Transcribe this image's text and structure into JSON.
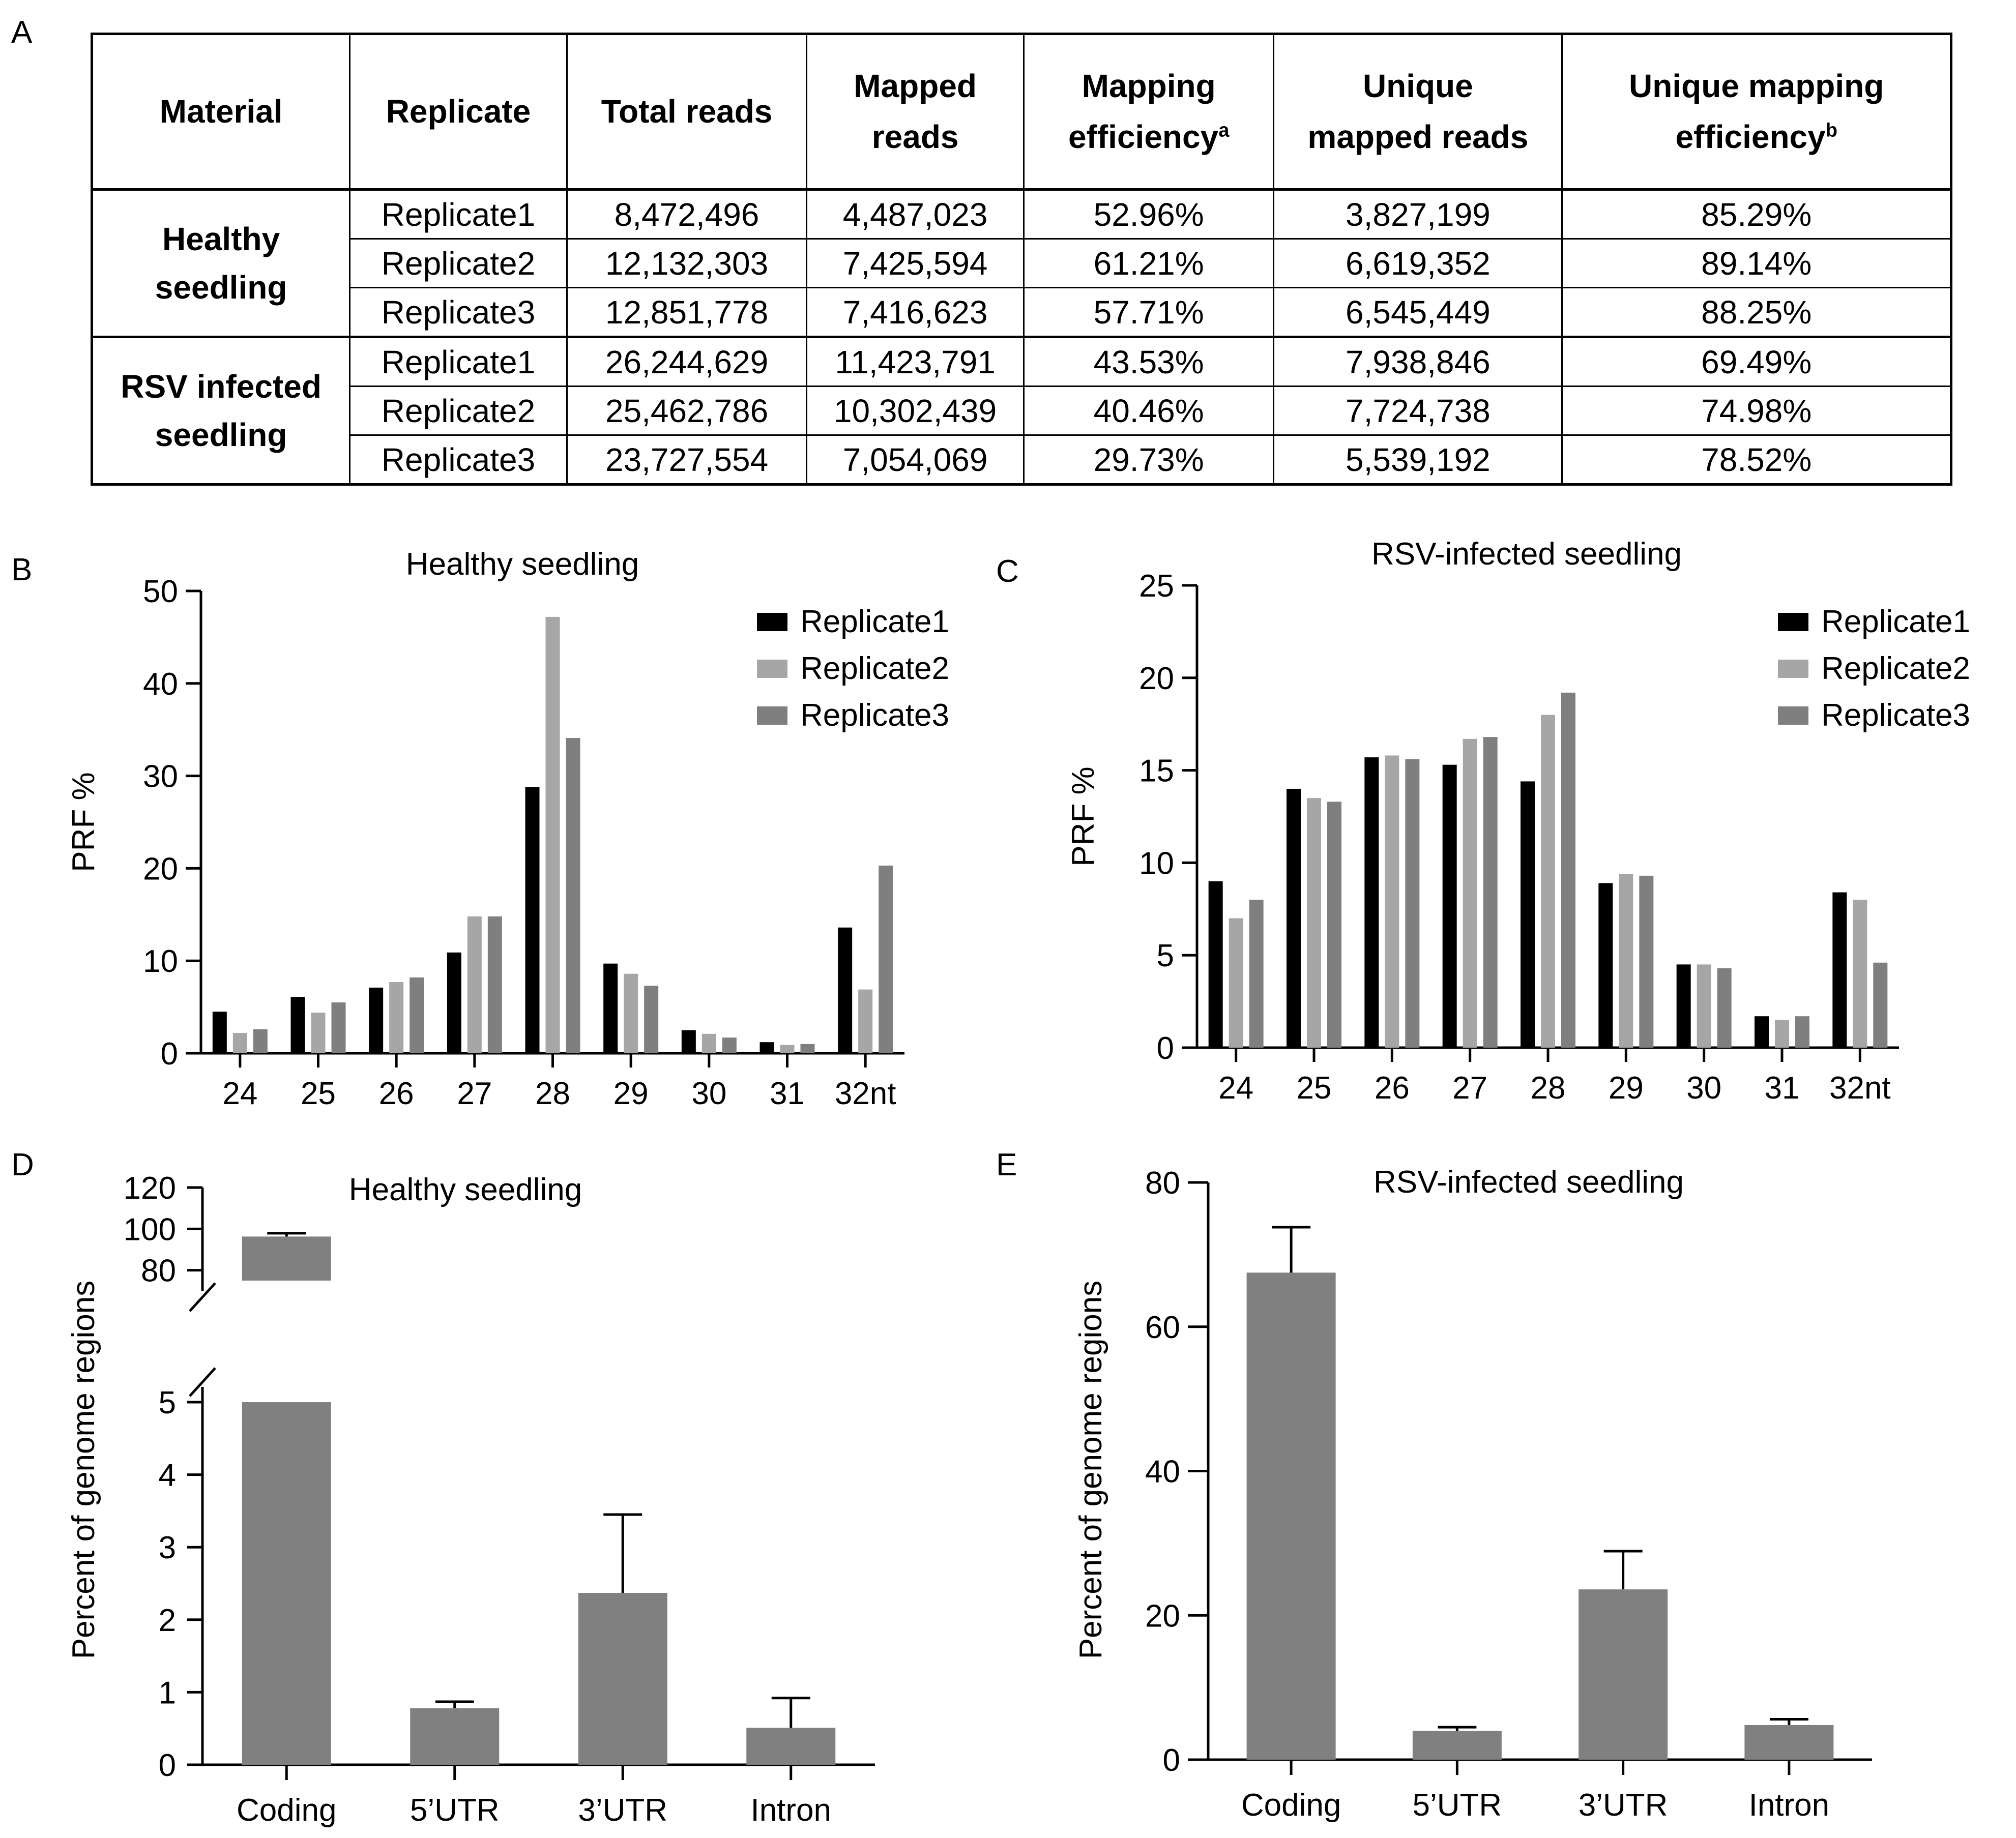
{
  "panel_labels": {
    "a": "A",
    "b": "B",
    "c": "C",
    "d": "D",
    "e": "E"
  },
  "table": {
    "headers": [
      {
        "text": "Material"
      },
      {
        "text": "Replicate"
      },
      {
        "text": "Total reads"
      },
      {
        "line1": "Mapped",
        "line2": "reads"
      },
      {
        "line1": "Mapping",
        "line2": "efficiency",
        "sup": "a"
      },
      {
        "line1": "Unique",
        "line2": "mapped reads"
      },
      {
        "line1": "Unique mapping",
        "line2": "efficiency",
        "sup": "b"
      }
    ],
    "groups": [
      {
        "line1": "Healthy",
        "line2": "seedling",
        "rows": [
          [
            "Replicate1",
            "8,472,496",
            "4,487,023",
            "52.96%",
            "3,827,199",
            "85.29%"
          ],
          [
            "Replicate2",
            "12,132,303",
            "7,425,594",
            "61.21%",
            "6,619,352",
            "89.14%"
          ],
          [
            "Replicate3",
            "12,851,778",
            "7,416,623",
            "57.71%",
            "6,545,449",
            "88.25%"
          ]
        ]
      },
      {
        "line1": "RSV infected",
        "line2": "seedling",
        "rows": [
          [
            "Replicate1",
            "26,244,629",
            "11,423,791",
            "43.53%",
            "7,938,846",
            "69.49%"
          ],
          [
            "Replicate2",
            "25,462,786",
            "10,302,439",
            "40.46%",
            "7,724,738",
            "74.98%"
          ],
          [
            "Replicate3",
            "23,727,554",
            "7,054,069",
            "29.73%",
            "5,539,192",
            "78.52%"
          ]
        ]
      }
    ]
  },
  "colors": {
    "rep1": "#000000",
    "rep2": "#a6a6a6",
    "rep3": "#7f7f7f",
    "bar": "#808080"
  },
  "chart_data": [
    {
      "id": "B",
      "type": "bar",
      "title": "Healthy seedling",
      "xlabel": "",
      "ylabel": "PRF %",
      "categories": [
        "24",
        "25",
        "26",
        "27",
        "28",
        "29",
        "30",
        "31",
        "32nt"
      ],
      "series": [
        {
          "name": "Replicate1",
          "values": [
            4.5,
            6.1,
            7.1,
            10.9,
            28.8,
            9.7,
            2.5,
            1.2,
            13.6
          ]
        },
        {
          "name": "Replicate2",
          "values": [
            2.2,
            4.4,
            7.7,
            14.8,
            47.2,
            8.6,
            2.1,
            0.9,
            6.9
          ]
        },
        {
          "name": "Replicate3",
          "values": [
            2.6,
            5.5,
            8.2,
            14.8,
            34.1,
            7.3,
            1.7,
            1.0,
            20.3
          ]
        }
      ],
      "ylim": [
        0,
        50
      ],
      "yticks": [
        0,
        10,
        20,
        30,
        40,
        50
      ],
      "legend": "top-right"
    },
    {
      "id": "C",
      "type": "bar",
      "title": "RSV-infected seedling",
      "xlabel": "",
      "ylabel": "PRF %",
      "categories": [
        "24",
        "25",
        "26",
        "27",
        "28",
        "29",
        "30",
        "31",
        "32nt"
      ],
      "series": [
        {
          "name": "Replicate1",
          "values": [
            9.0,
            14.0,
            15.7,
            15.3,
            14.4,
            8.9,
            4.5,
            1.7,
            8.4
          ]
        },
        {
          "name": "Replicate2",
          "values": [
            7.0,
            13.5,
            15.8,
            16.7,
            18.0,
            9.4,
            4.5,
            1.5,
            8.0
          ]
        },
        {
          "name": "Replicate3",
          "values": [
            8.0,
            13.3,
            15.6,
            16.8,
            19.2,
            9.3,
            4.3,
            1.7,
            4.6
          ]
        }
      ],
      "ylim": [
        0,
        25
      ],
      "yticks": [
        0,
        5,
        10,
        15,
        20,
        25
      ],
      "legend": "top-right"
    },
    {
      "id": "D",
      "type": "bar",
      "title": "Healthy seedling",
      "xlabel": "",
      "ylabel": "Percent of genome regions",
      "categories": [
        "Coding",
        "5’UTR",
        "3’UTR",
        "Intron"
      ],
      "values": [
        96.3,
        0.78,
        2.37,
        0.51
      ],
      "errors": [
        1.6,
        0.09,
        1.08,
        0.41
      ],
      "broken_axis": {
        "lower": [
          0,
          5
        ],
        "upper": [
          75,
          120
        ]
      },
      "yticks_lower": [
        0,
        1,
        2,
        3,
        4,
        5
      ],
      "yticks_upper": [
        80,
        100,
        120
      ]
    },
    {
      "id": "E",
      "type": "bar",
      "title": "RSV-infected seedling",
      "xlabel": "",
      "ylabel": "Percent of genome regions",
      "categories": [
        "Coding",
        "5’UTR",
        "3’UTR",
        "Intron"
      ],
      "values": [
        67.5,
        4.0,
        23.6,
        4.8
      ],
      "errors": [
        6.3,
        0.5,
        5.3,
        0.8
      ],
      "ylim": [
        0,
        80
      ],
      "yticks": [
        0,
        20,
        40,
        60,
        80
      ]
    }
  ]
}
